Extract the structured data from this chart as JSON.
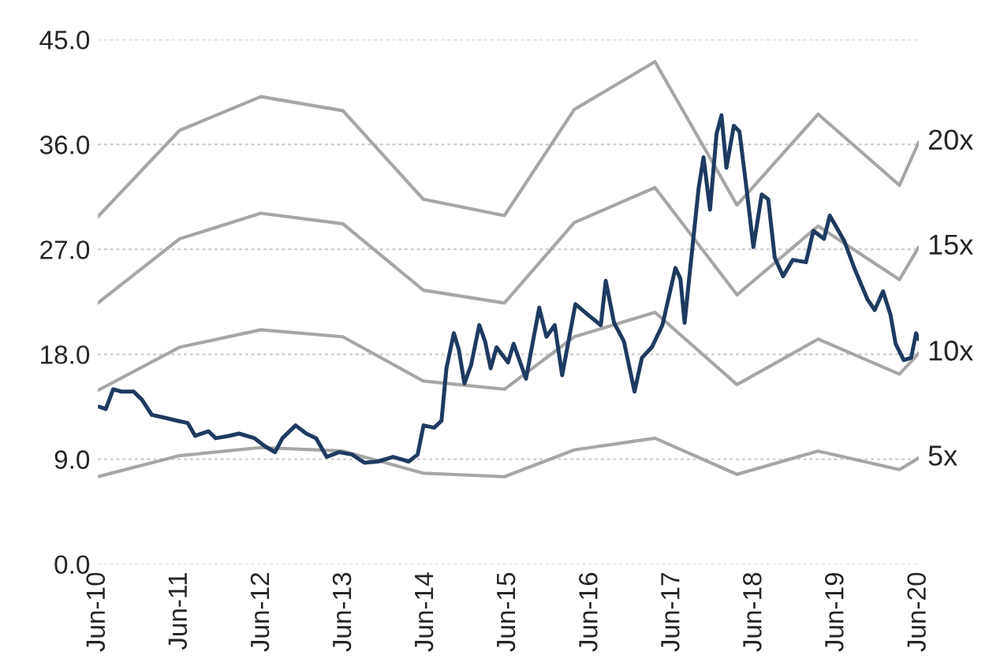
{
  "chart_data": {
    "type": "line",
    "xlim": [
      "2010-06-30",
      "2020-06-30"
    ],
    "xticks": [
      {
        "value": "2010-06-30",
        "label": "Jun-10"
      },
      {
        "value": "2011-06-30",
        "label": "Jun-11"
      },
      {
        "value": "2012-06-30",
        "label": "Jun-12"
      },
      {
        "value": "2013-06-30",
        "label": "Jun-13"
      },
      {
        "value": "2014-06-30",
        "label": "Jun-14"
      },
      {
        "value": "2015-06-30",
        "label": "Jun-15"
      },
      {
        "value": "2016-06-30",
        "label": "Jun-16"
      },
      {
        "value": "2017-06-30",
        "label": "Jun-17"
      },
      {
        "value": "2018-06-30",
        "label": "Jun-18"
      },
      {
        "value": "2019-06-30",
        "label": "Jun-19"
      },
      {
        "value": "2020-06-30",
        "label": "Jun-20"
      }
    ],
    "ylim": [
      0,
      45
    ],
    "yticks": [
      {
        "value": 0,
        "label": "0.0"
      },
      {
        "value": 9,
        "label": "9.0"
      },
      {
        "value": 18,
        "label": "18.0"
      },
      {
        "value": 27,
        "label": "27.0"
      },
      {
        "value": 36,
        "label": "36.0"
      },
      {
        "value": 45,
        "label": "45.0"
      }
    ],
    "grid": "y",
    "legend": false,
    "marker": "none",
    "line_style": "solid",
    "series": [
      {
        "name": "20x",
        "color": "#a6a6a6",
        "x": [
          "2010-06-30",
          "2011-06-28",
          "2012-06-24",
          "2013-06-24",
          "2014-06-17",
          "2015-06-13",
          "2016-04-19",
          "2017-04-13",
          "2018-04-13",
          "2019-04-09",
          "2020-04-05",
          "2020-06-30"
        ],
        "values": [
          29.8,
          37.2,
          40.1,
          38.9,
          31.3,
          29.9,
          39.0,
          43.1,
          30.8,
          38.6,
          32.5,
          36.2
        ]
      },
      {
        "name": "15x",
        "color": "#a6a6a6",
        "x": [
          "2010-06-30",
          "2011-06-28",
          "2012-06-24",
          "2013-06-24",
          "2014-06-17",
          "2015-06-13",
          "2016-04-19",
          "2017-04-13",
          "2018-04-13",
          "2019-04-09",
          "2020-04-05",
          "2020-06-30"
        ],
        "values": [
          22.4,
          27.9,
          30.1,
          29.2,
          23.5,
          22.4,
          29.3,
          32.3,
          23.1,
          29.0,
          24.4,
          27.2
        ]
      },
      {
        "name": "10x",
        "color": "#a6a6a6",
        "x": [
          "2010-06-30",
          "2011-06-28",
          "2012-06-24",
          "2013-06-24",
          "2014-06-17",
          "2015-06-13",
          "2016-04-19",
          "2017-04-13",
          "2018-04-13",
          "2019-04-09",
          "2020-04-05",
          "2020-06-30"
        ],
        "values": [
          14.9,
          18.6,
          20.1,
          19.5,
          15.7,
          15.0,
          19.5,
          21.6,
          15.4,
          19.3,
          16.3,
          18.1
        ]
      },
      {
        "name": "5x",
        "color": "#a6a6a6",
        "x": [
          "2010-06-30",
          "2011-06-28",
          "2012-06-24",
          "2013-06-24",
          "2014-06-17",
          "2015-06-13",
          "2016-04-19",
          "2017-04-13",
          "2018-04-13",
          "2019-04-09",
          "2020-04-05",
          "2020-06-30"
        ],
        "values": [
          7.5,
          9.3,
          10.0,
          9.7,
          7.8,
          7.5,
          9.8,
          10.8,
          7.7,
          9.7,
          8.1,
          9.1
        ]
      },
      {
        "color": "#1f3a60",
        "x": [
          "2010-07-05",
          "2010-08-04",
          "2010-09-06",
          "2010-10-13",
          "2010-12-06",
          "2011-01-12",
          "2011-02-25",
          "2011-04-13",
          "2011-06-18",
          "2011-08-04",
          "2011-09-06",
          "2011-11-04",
          "2011-12-06",
          "2012-02-03",
          "2012-03-19",
          "2012-05-27",
          "2012-07-13",
          "2012-08-26",
          "2012-09-28",
          "2012-11-26",
          "2013-01-12",
          "2013-02-25",
          "2013-04-13",
          "2013-06-07",
          "2013-08-04",
          "2013-09-28",
          "2013-11-26",
          "2014-02-03",
          "2014-04-13",
          "2014-05-23",
          "2014-06-18",
          "2014-08-04",
          "2014-09-06",
          "2014-09-28",
          "2014-10-31",
          "2014-11-22",
          "2014-12-17",
          "2015-01-16",
          "2015-02-21",
          "2015-03-19",
          "2015-04-13",
          "2015-05-09",
          "2015-06-29",
          "2015-07-24",
          "2015-09-17",
          "2015-11-15",
          "2015-12-17",
          "2016-01-23",
          "2016-02-25",
          "2016-04-24",
          "2016-06-18",
          "2016-08-15",
          "2016-09-06",
          "2016-10-13",
          "2016-11-26",
          "2017-01-12",
          "2017-02-14",
          "2017-03-30",
          "2017-05-16",
          "2017-07-13",
          "2017-08-04",
          "2017-08-23",
          "2017-09-17",
          "2017-10-24",
          "2017-11-15",
          "2017-12-14",
          "2018-01-12",
          "2018-02-03",
          "2018-02-25",
          "2018-03-30",
          "2018-04-24",
          "2018-05-23",
          "2018-06-25",
          "2018-08-01",
          "2018-08-30",
          "2018-09-28",
          "2018-11-04",
          "2018-12-17",
          "2019-02-14",
          "2019-03-19",
          "2019-05-05",
          "2019-05-31",
          "2019-08-04",
          "2019-09-17",
          "2019-11-15",
          "2019-12-17",
          "2020-01-23",
          "2020-02-25",
          "2020-03-19",
          "2020-04-24",
          "2020-05-27",
          "2020-06-18",
          "2020-06-29"
        ],
        "values": [
          13.5,
          13.3,
          15.0,
          14.8,
          14.8,
          14.1,
          12.8,
          12.6,
          12.3,
          12.1,
          11.0,
          11.4,
          10.8,
          11.0,
          11.2,
          10.8,
          10.1,
          9.6,
          10.8,
          11.9,
          11.2,
          10.8,
          9.2,
          9.6,
          9.4,
          8.7,
          8.8,
          9.2,
          8.8,
          9.4,
          11.9,
          11.7,
          12.3,
          16.8,
          19.8,
          18.4,
          15.5,
          17.1,
          20.5,
          19.1,
          16.8,
          18.6,
          17.3,
          18.9,
          15.9,
          22.0,
          19.5,
          20.5,
          16.2,
          22.3,
          21.4,
          20.5,
          24.3,
          20.7,
          19.1,
          14.8,
          17.7,
          18.6,
          20.5,
          25.4,
          24.5,
          20.7,
          25.4,
          32.2,
          34.9,
          30.4,
          36.9,
          38.5,
          34.0,
          37.6,
          37.1,
          32.6,
          27.2,
          31.7,
          31.3,
          26.3,
          24.7,
          26.1,
          25.9,
          28.6,
          27.9,
          29.9,
          27.7,
          25.4,
          22.7,
          21.8,
          23.4,
          21.4,
          18.9,
          17.5,
          17.7,
          19.8,
          19.3
        ]
      }
    ]
  }
}
